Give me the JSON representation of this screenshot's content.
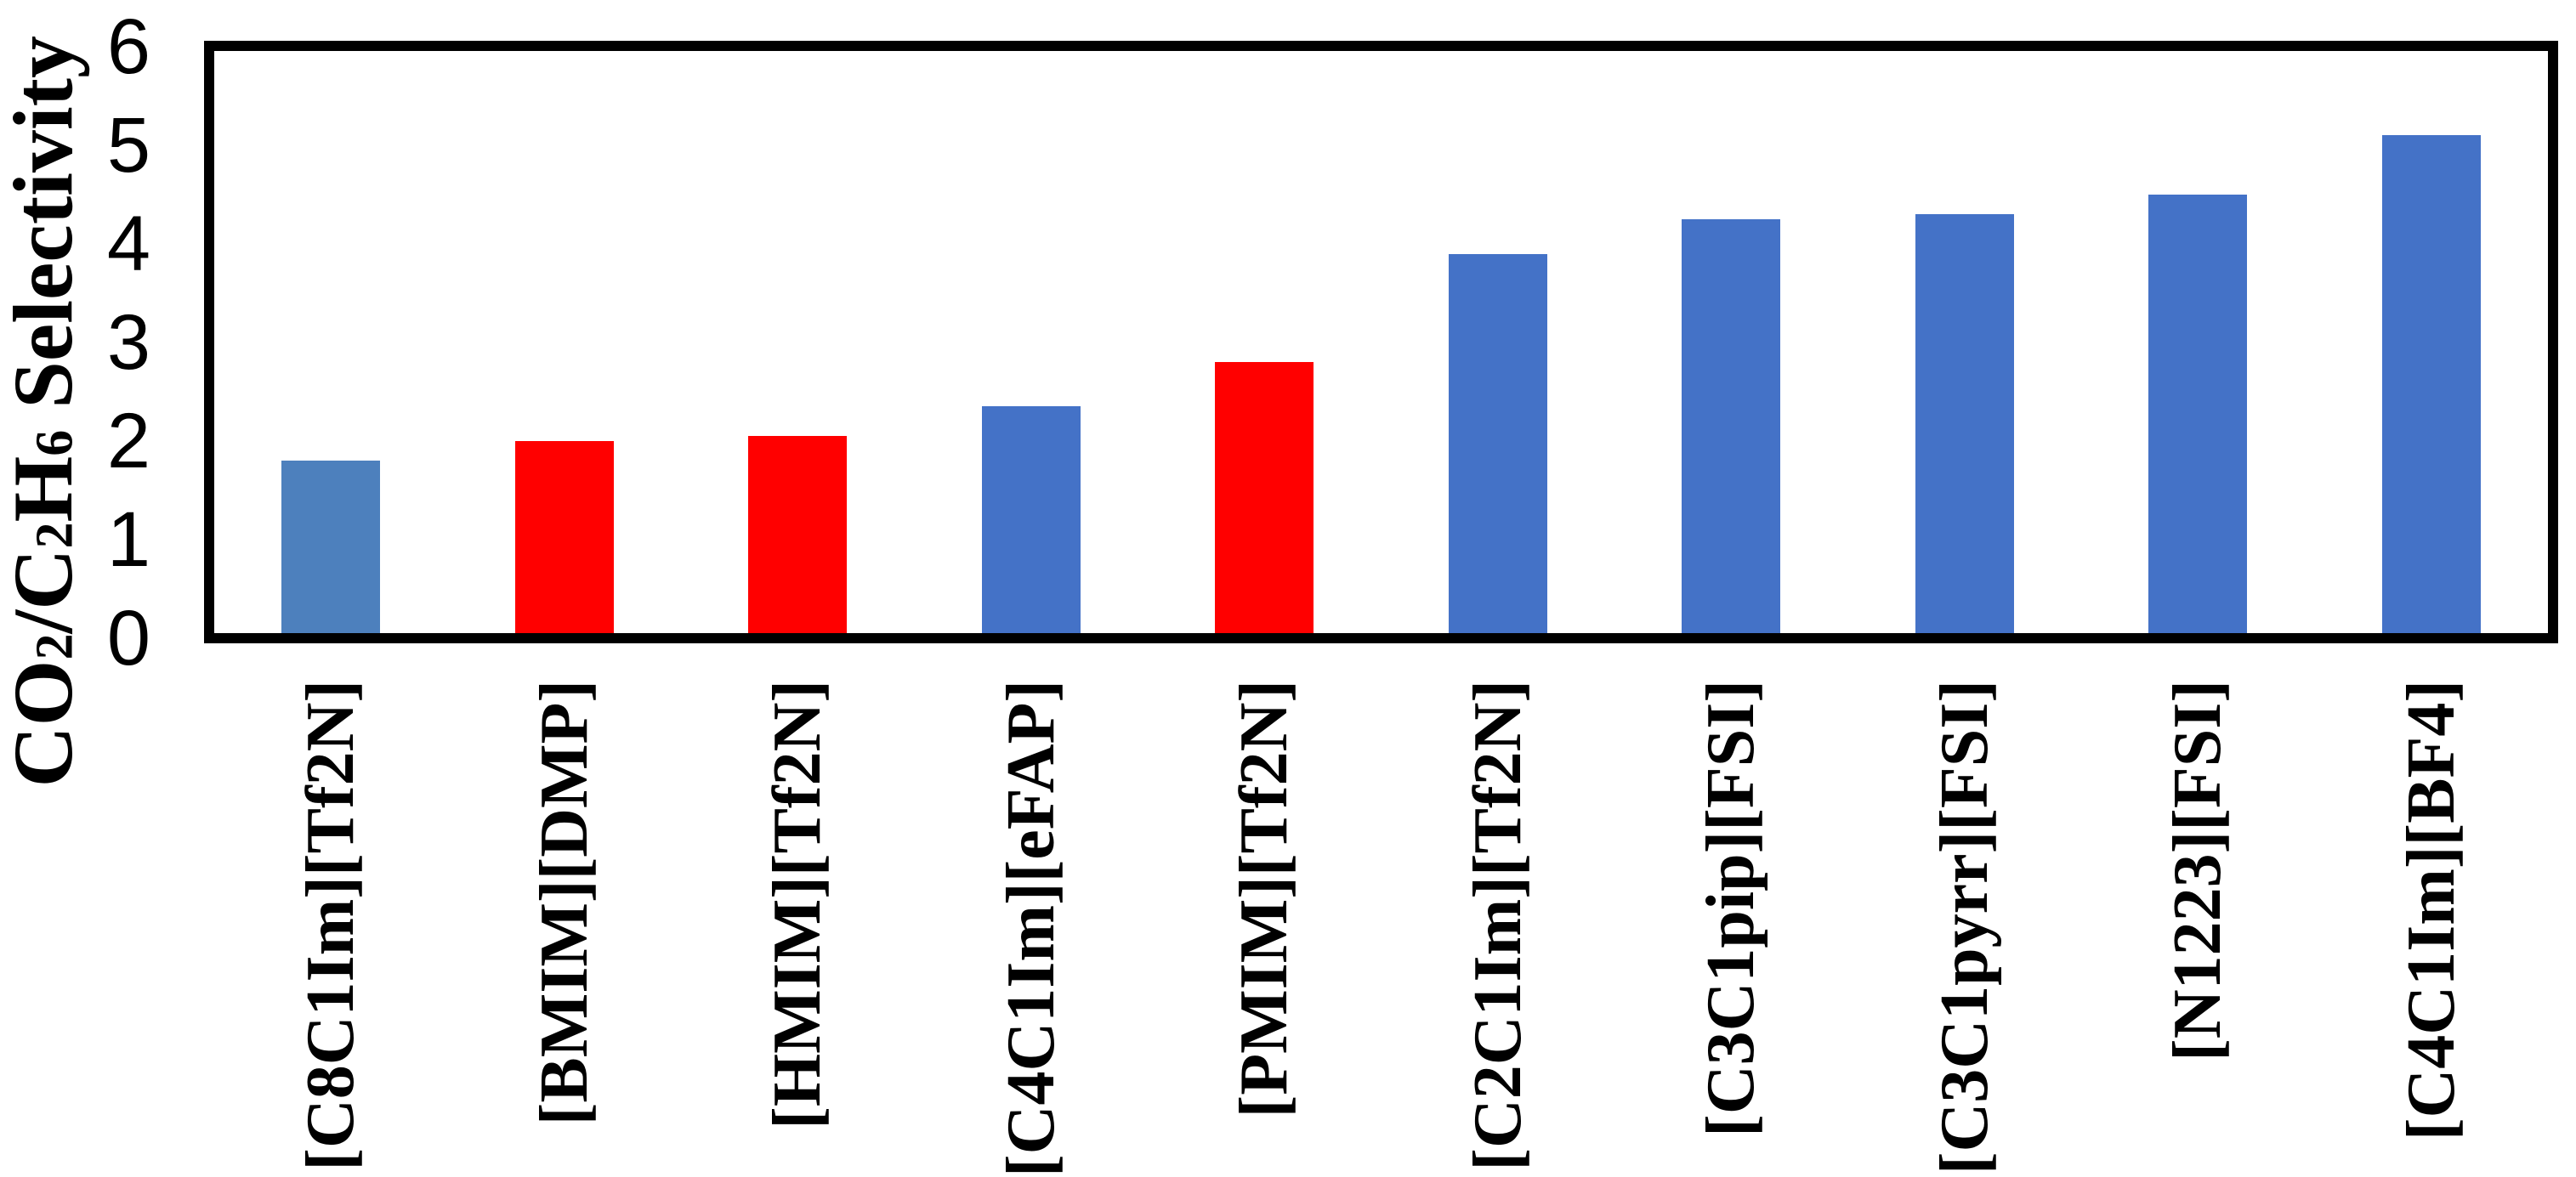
{
  "chart_data": {
    "type": "bar",
    "title": "",
    "ylabel": "CO2/C2H6 Selectivity",
    "ylabel_segments": [
      {
        "t": "CO",
        "sub": false
      },
      {
        "t": "2",
        "sub": true
      },
      {
        "t": "/C",
        "sub": false
      },
      {
        "t": "2",
        "sub": true
      },
      {
        "t": "H",
        "sub": false
      },
      {
        "t": "6",
        "sub": true
      },
      {
        "t": " Selectivity",
        "sub": false
      }
    ],
    "xlabel": "",
    "ylim": [
      0,
      6
    ],
    "y_ticks": [
      "6",
      "5",
      "4",
      "3",
      "2",
      "1",
      "0"
    ],
    "grid": false,
    "legend": false,
    "categories": [
      "[C8C1Im][Tf2N]",
      "[BMIM][DMP]",
      "[HMIM][Tf2N]",
      "[C4C1Im][eFAP]",
      "[PMIM][Tf2N]",
      "[C2C1Im][Tf2N]",
      "[C3C1pip][FSI]",
      "[C3C1pyrr][FSI]",
      "[N1223][FSI]",
      "[C4C1Im][BF4]"
    ],
    "values": [
      1.8,
      2.0,
      2.05,
      2.35,
      2.8,
      3.9,
      4.25,
      4.3,
      4.5,
      5.1
    ],
    "bar_colors": [
      "blue_light",
      "red",
      "red",
      "blue",
      "red",
      "blue",
      "blue",
      "blue",
      "blue",
      "blue"
    ],
    "colors": {
      "blue_light": "#4d80bd",
      "blue": "#4472c7",
      "red": "#ff0000",
      "frame": "#000000"
    }
  }
}
